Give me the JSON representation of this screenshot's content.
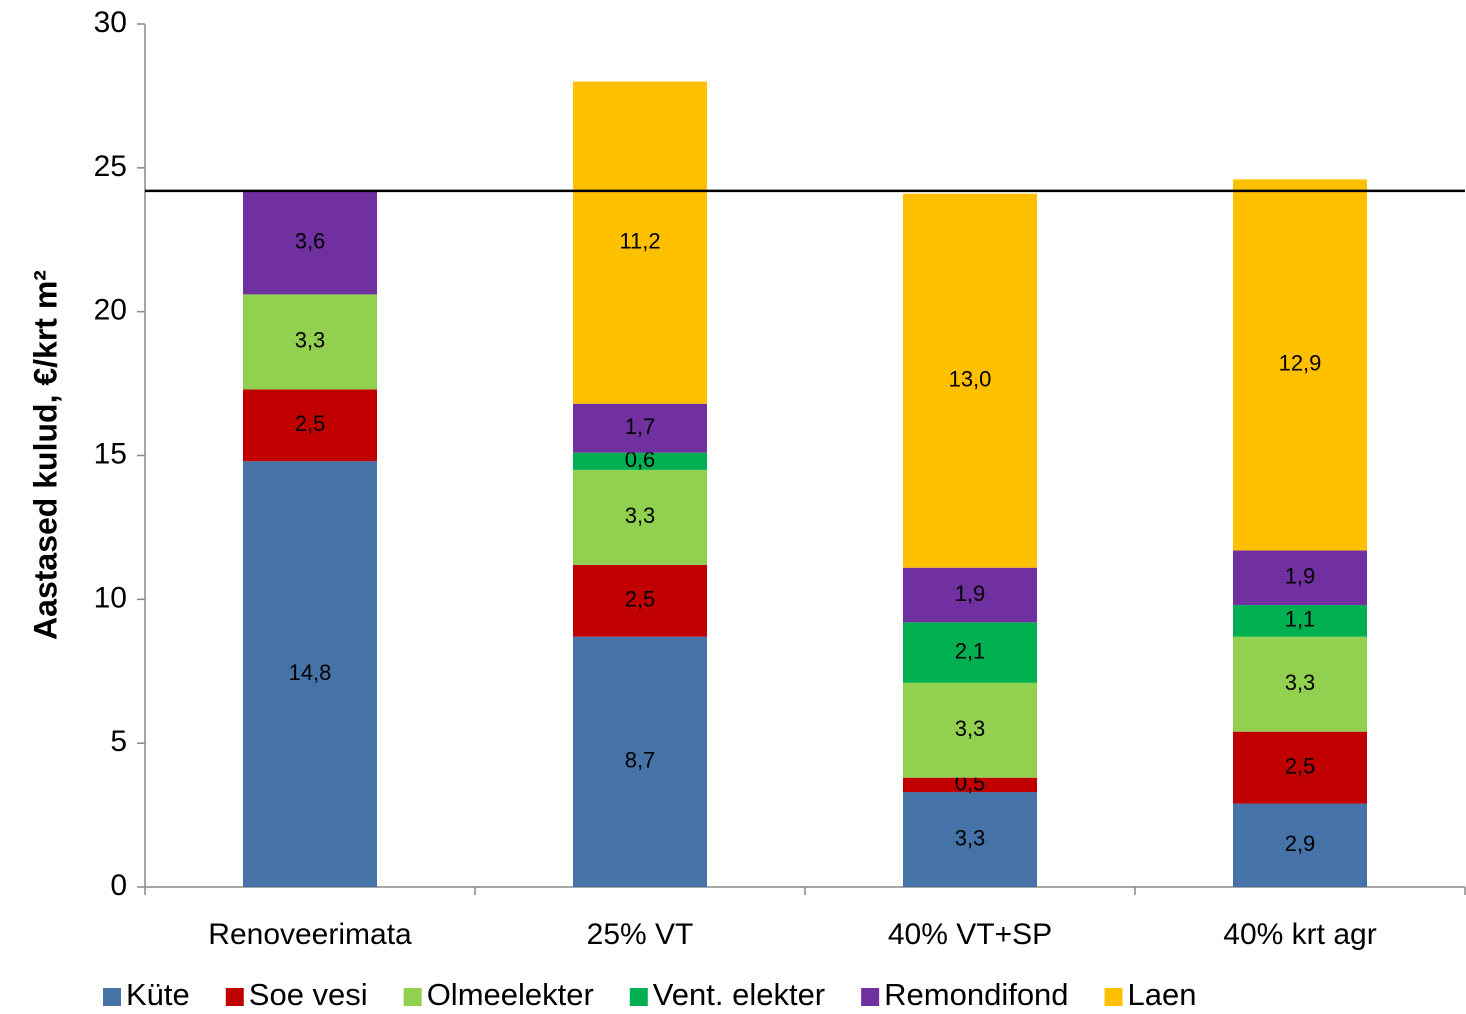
{
  "chart_data": {
    "type": "stacked_bar",
    "y_label": "Aastased kulud, €/krt m²",
    "categories": [
      "Renoveerimata",
      "25% VT",
      "40% VT+SP",
      "40% krt agr"
    ],
    "series": [
      {
        "name": "Küte",
        "color": "#4572a7",
        "values": [
          14.8,
          8.7,
          3.3,
          2.9
        ],
        "value_labels": [
          "14,8",
          "8,7",
          "3,3",
          "2,9"
        ]
      },
      {
        "name": "Soe vesi",
        "color": "#c00000",
        "values": [
          2.5,
          2.5,
          0.5,
          2.5
        ],
        "value_labels": [
          "2,5",
          "2,5",
          "0,5",
          "2,5"
        ]
      },
      {
        "name": "Olmeelekter",
        "color": "#92d050",
        "values": [
          3.3,
          3.3,
          3.3,
          3.3
        ],
        "value_labels": [
          "3,3",
          "3,3",
          "3,3",
          "3,3"
        ]
      },
      {
        "name": "Vent. elekter",
        "color": "#00b050",
        "values": [
          null,
          0.6,
          2.1,
          1.1
        ],
        "value_labels": [
          null,
          "0,6",
          "2,1",
          "1,1"
        ]
      },
      {
        "name": "Remondifond",
        "color": "#7030a0",
        "values": [
          3.6,
          1.7,
          1.9,
          1.9
        ],
        "value_labels": [
          "3,6",
          "1,7",
          "1,9",
          "1,9"
        ]
      },
      {
        "name": "Laen",
        "color": "#ffc000",
        "values": [
          null,
          11.2,
          13.0,
          12.9
        ],
        "value_labels": [
          null,
          "11,2",
          "13,0",
          "12,9"
        ]
      }
    ],
    "reference_line": 24.2,
    "ylim": [
      0,
      30
    ],
    "yticks": [
      0,
      5,
      10,
      15,
      20,
      25,
      30
    ],
    "legend": "bottom"
  }
}
